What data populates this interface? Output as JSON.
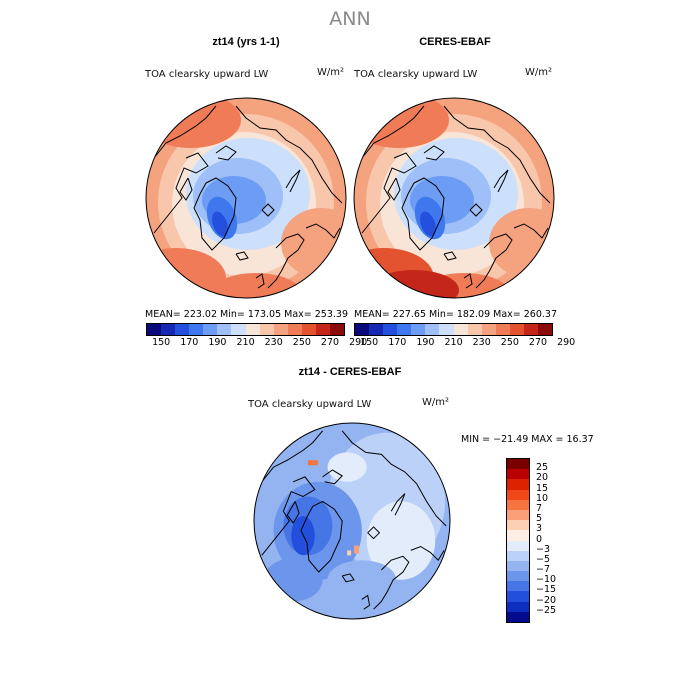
{
  "title": "ANN",
  "panels": [
    {
      "title": "zt14 (yrs 1-1)",
      "variable": "TOA clearsky upward LW",
      "units": "W/m²",
      "stats": "MEAN= 223.02   Min= 173.05   Max= 253.39"
    },
    {
      "title": "CERES-EBAF",
      "variable": "TOA clearsky upward LW",
      "units": "W/m²",
      "stats": "MEAN= 227.65   Min= 182.09   Max= 260.37"
    }
  ],
  "diff_panel": {
    "title": "zt14 - CERES-EBAF",
    "variable": "TOA clearsky upward LW",
    "units": "W/m²",
    "stats": "MIN = −21.49  MAX =  16.37"
  },
  "colors": {
    "abs_scale": [
      "#0a0a7a",
      "#1728b5",
      "#2550dd",
      "#3f78ee",
      "#6c9cf3",
      "#9ebff7",
      "#cce0fb",
      "#f9e5d8",
      "#f8c6ab",
      "#f5a27f",
      "#ef7b57",
      "#e4532f",
      "#c4271a",
      "#8b0b0b"
    ],
    "diff_scale": [
      "#7a0000",
      "#b80000",
      "#dd2200",
      "#f04818",
      "#f6743f",
      "#f9a078",
      "#fbd0b5",
      "#ffeee3",
      "#e2ecfb",
      "#bcd1f7",
      "#93b4f1",
      "#6c95ec",
      "#4676e6",
      "#2250dc",
      "#0d2fbf",
      "#050a8c"
    ],
    "land_line": "#000000"
  },
  "chart_data": [
    {
      "type": "heatmap",
      "projection": "north-polar-stereographic",
      "title": "zt14 (yrs 1-1)",
      "variable": "TOA clearsky upward LW",
      "units": "W/m²",
      "mean": 223.02,
      "min": 173.05,
      "max": 253.39,
      "colorbar_levels": [
        150,
        170,
        190,
        210,
        230,
        250,
        270,
        290
      ]
    },
    {
      "type": "heatmap",
      "projection": "north-polar-stereographic",
      "title": "CERES-EBAF",
      "variable": "TOA clearsky upward LW",
      "units": "W/m²",
      "mean": 227.65,
      "min": 182.09,
      "max": 260.37,
      "colorbar_levels": [
        150,
        170,
        190,
        210,
        230,
        250,
        270,
        290
      ]
    },
    {
      "type": "heatmap",
      "projection": "north-polar-stereographic",
      "title": "zt14 - CERES-EBAF",
      "variable": "TOA clearsky upward LW",
      "units": "W/m²",
      "min": -21.49,
      "max": 16.37,
      "colorbar_levels": [
        "25",
        "20",
        "15",
        "10",
        "7",
        "5",
        "3",
        "0",
        "−3",
        "−5",
        "−7",
        "−10",
        "−15",
        "−20",
        "−25"
      ]
    }
  ]
}
